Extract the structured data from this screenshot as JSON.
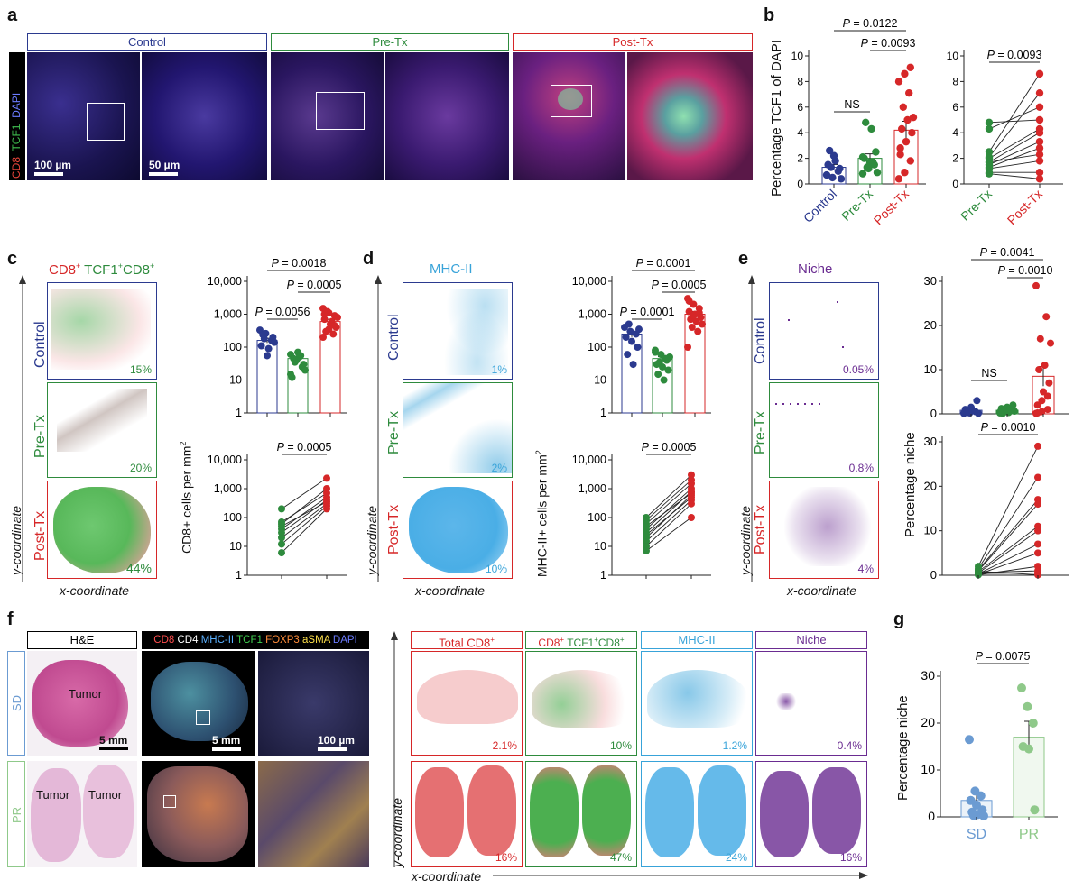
{
  "panel_letters": [
    "a",
    "b",
    "c",
    "d",
    "e",
    "f",
    "g"
  ],
  "colors": {
    "control": "#2b3a8f",
    "pretx": "#2e8b3d",
    "posttx": "#d62728",
    "mhc": "#38a3d9",
    "niche": "#6a2c91",
    "cd8": "#e15759",
    "tcf": "#4caf50",
    "sd": "#6b9bd2",
    "pr": "#8fc98a"
  },
  "a": {
    "headers": [
      "Control",
      "Pre-Tx",
      "Post-Tx"
    ],
    "channel_labels": [
      "CD8",
      "TCF1",
      "DAPI"
    ],
    "scale_bars": [
      "100 µm",
      "50 µm"
    ]
  },
  "b": {
    "ylabel": "Percentage TCF1 of DAPI",
    "left_pvals": [
      "P = 0.0122",
      "P = 0.0093",
      "NS"
    ],
    "right_pval": "P = 0.0093"
  },
  "c": {
    "title_cd8": "CD8",
    "title_sup": "+",
    "title_tcf": " TCF1",
    "title_tcf_sup": "+",
    "title_cd8b": "CD8",
    "title_sup2": "+",
    "rows": [
      "Control",
      "Pre-Tx",
      "Post-Tx"
    ],
    "pcts": [
      "15%",
      "20%",
      "44%"
    ],
    "ylabel_axis": "y-coordinate",
    "xlabel_axis": "x-coordinate",
    "chart_ylabel": "CD8+ cells per mm",
    "top_pvals": [
      "P = 0.0018",
      "P = 0.0005",
      "P = 0.0056"
    ],
    "bottom_pval": "P = 0.0005"
  },
  "d": {
    "title": "MHC-II",
    "rows": [
      "Control",
      "Pre-Tx",
      "Post-Tx"
    ],
    "pcts": [
      "1%",
      "2%",
      "10%"
    ],
    "ylabel_axis": "y-coordinate",
    "xlabel_axis": "x-coordinate",
    "chart_ylabel": "MHC-II+ cells per mm",
    "top_pvals": [
      "P = 0.0001",
      "P = 0.0005",
      "P = 0.0001"
    ],
    "bottom_pval": "P = 0.0005"
  },
  "e": {
    "title": "Niche",
    "rows": [
      "Control",
      "Pre-Tx",
      "Post-Tx"
    ],
    "pcts": [
      "0.05%",
      "0.8%",
      "4%"
    ],
    "ylabel_axis": "y-coordinate",
    "xlabel_axis": "x-coordinate",
    "chart_ylabel": "Percentage niche",
    "top_pvals": [
      "P = 0.0041",
      "P = 0.0010",
      "NS"
    ],
    "bottom_pval": "P = 0.0010"
  },
  "f": {
    "he_label": "H&E",
    "mif_labels": [
      "CD8",
      "CD4",
      "MHC-II",
      "TCF1",
      "FOXP3",
      "aSMA",
      "DAPI"
    ],
    "rows": [
      "SD",
      "PR"
    ],
    "tumor": "Tumor",
    "scale_bars": [
      "5 mm",
      "5 mm",
      "100 µm"
    ],
    "map_headers": [
      "Total CD8",
      "CD8",
      "TCF1",
      "CD8",
      "MHC-II",
      "Niche"
    ],
    "map_sup": "+",
    "sd_pcts": [
      "2.1%",
      "10%",
      "1.2%",
      "0.4%"
    ],
    "pr_pcts": [
      "16%",
      "47%",
      "24%",
      "16%"
    ],
    "ylabel_axis": "y-coordinate",
    "xlabel_axis": "x-coordinate"
  },
  "g": {
    "ylabel": "Percentage niche",
    "pval": "P = 0.0075"
  },
  "chart_data": [
    {
      "id": "b-left",
      "type": "scatter",
      "categories": [
        "Control",
        "Pre-Tx",
        "Post-Tx"
      ],
      "ylim": [
        0,
        10
      ],
      "yticks": [
        0,
        2,
        4,
        6,
        8,
        10
      ],
      "ylabel": "Percentage TCF1 of DAPI",
      "points": [
        [
          0.7,
          0.5,
          1.0,
          1.5,
          2.2,
          1.2,
          2.6,
          1.8,
          0.4,
          1.3
        ],
        [
          0.8,
          1.2,
          1.5,
          2.0,
          1.7,
          2.5,
          4.8,
          4.3,
          0.9,
          1.3,
          1.7,
          2.1
        ],
        [
          0.4,
          0.9,
          1.8,
          2.8,
          3.3,
          4.0,
          4.3,
          5.0,
          5.2,
          6.0,
          7.1,
          8.0,
          8.6,
          9.1,
          2.3
        ]
      ],
      "means": [
        1.3,
        2.0,
        4.2
      ]
    },
    {
      "id": "b-right",
      "type": "paired",
      "categories": [
        "Pre-Tx",
        "Post-Tx"
      ],
      "ylim": [
        0,
        10
      ],
      "yticks": [
        0,
        2,
        4,
        6,
        8,
        10
      ],
      "pairs": [
        [
          4.8,
          5.0
        ],
        [
          4.3,
          6.0
        ],
        [
          2.5,
          8.6
        ],
        [
          2.1,
          7.1
        ],
        [
          2.0,
          4.3
        ],
        [
          1.7,
          4.0
        ],
        [
          1.5,
          3.3
        ],
        [
          1.3,
          2.8
        ],
        [
          1.2,
          1.8
        ],
        [
          0.9,
          0.9
        ],
        [
          0.8,
          0.4
        ],
        [
          1.7,
          2.3
        ]
      ]
    },
    {
      "id": "c-top",
      "type": "scatter",
      "scale": "log",
      "categories": [
        "Control",
        "Pre-Tx",
        "Post-Tx"
      ],
      "yticks": [
        1,
        10,
        100,
        1000,
        10000
      ],
      "yticklabels": [
        "1",
        "10",
        "100",
        "1,000",
        "10,000"
      ],
      "points": [
        [
          330,
          260,
          160,
          110,
          55,
          200,
          240,
          90,
          140,
          180
        ],
        [
          60,
          40,
          25,
          12,
          70,
          30,
          45,
          50,
          20,
          35,
          55,
          15
        ],
        [
          1500,
          1100,
          900,
          700,
          500,
          400,
          300,
          600,
          800,
          1200,
          250,
          200,
          350,
          450,
          1000
        ]
      ],
      "means": [
        160,
        45,
        600
      ]
    },
    {
      "id": "c-bottom",
      "type": "paired",
      "scale": "log",
      "categories": [
        "Pre-Tx",
        "Post-Tx"
      ],
      "yticks": [
        1,
        10,
        100,
        1000,
        10000
      ],
      "yticklabels": [
        "1",
        "10",
        "100",
        "1,000",
        "10,000"
      ],
      "pairs": [
        [
          200,
          2300
        ],
        [
          60,
          1000
        ],
        [
          40,
          500
        ],
        [
          30,
          400
        ],
        [
          20,
          300
        ],
        [
          12,
          250
        ],
        [
          6,
          200
        ],
        [
          50,
          350
        ],
        [
          70,
          700
        ]
      ]
    },
    {
      "id": "d-top",
      "type": "scatter",
      "scale": "log",
      "categories": [
        "Control",
        "Pre-Tx",
        "Post-Tx"
      ],
      "yticks": [
        1,
        10,
        100,
        1000,
        10000
      ],
      "yticklabels": [
        "1",
        "10",
        "100",
        "1,000",
        "10,000"
      ],
      "points": [
        [
          400,
          300,
          250,
          200,
          150,
          100,
          60,
          30,
          350,
          500
        ],
        [
          80,
          60,
          40,
          30,
          25,
          20,
          15,
          10,
          50,
          35,
          45,
          70
        ],
        [
          3000,
          2000,
          1500,
          1200,
          1000,
          800,
          700,
          600,
          500,
          400,
          300,
          100,
          900,
          1100,
          2500
        ]
      ],
      "means": [
        250,
        45,
        1000
      ]
    },
    {
      "id": "d-bottom",
      "type": "paired",
      "scale": "log",
      "categories": [
        "Pre-Tx",
        "Post-Tx"
      ],
      "yticks": [
        1,
        10,
        100,
        1000,
        10000
      ],
      "yticklabels": [
        "1",
        "10",
        "100",
        "1,000",
        "10,000"
      ],
      "pairs": [
        [
          100,
          3000
        ],
        [
          80,
          2000
        ],
        [
          60,
          1500
        ],
        [
          40,
          1000
        ],
        [
          30,
          800
        ],
        [
          20,
          600
        ],
        [
          15,
          400
        ],
        [
          10,
          300
        ],
        [
          7,
          100
        ],
        [
          50,
          700
        ],
        [
          25,
          500
        ]
      ]
    },
    {
      "id": "e-top",
      "type": "scatter",
      "categories": [
        "Control",
        "Pre-Tx",
        "Post-Tx"
      ],
      "ylim": [
        0,
        30
      ],
      "yticks": [
        0,
        10,
        20,
        30
      ],
      "points": [
        [
          0.1,
          0.2,
          0.5,
          1.0,
          1.5,
          3.0,
          0.3,
          0.8,
          0.1,
          0.4
        ],
        [
          0.2,
          0.5,
          0.8,
          1.2,
          1.5,
          2.0,
          0.1,
          0.3,
          0.6,
          0.9,
          1.1,
          0.4
        ],
        [
          0.1,
          0.5,
          1.0,
          2.0,
          5.0,
          7.0,
          10.0,
          11.0,
          16.0,
          17.0,
          22.0,
          29.0,
          3.0,
          4.0,
          0.2
        ]
      ],
      "means": [
        0.8,
        0.8,
        8.5
      ]
    },
    {
      "id": "e-bottom",
      "type": "paired",
      "categories": [
        "Pre-Tx",
        "Post-Tx"
      ],
      "ylim": [
        0,
        30
      ],
      "yticks": [
        0,
        10,
        20,
        30
      ],
      "pairs": [
        [
          2.0,
          29.0
        ],
        [
          1.5,
          22.0
        ],
        [
          1.2,
          17.0
        ],
        [
          1.0,
          16.0
        ],
        [
          0.8,
          11.0
        ],
        [
          0.5,
          10.0
        ],
        [
          0.3,
          7.0
        ],
        [
          0.2,
          5.0
        ],
        [
          0.1,
          2.0
        ],
        [
          0.6,
          1.0
        ],
        [
          0.4,
          0.5
        ],
        [
          0.9,
          0.1
        ]
      ]
    },
    {
      "id": "g",
      "type": "scatter",
      "categories": [
        "SD",
        "PR"
      ],
      "ylim": [
        0,
        30
      ],
      "yticks": [
        0,
        10,
        20,
        30
      ],
      "ylabel": "Percentage niche",
      "points": [
        [
          16.5,
          5.5,
          4.5,
          3.5,
          2.5,
          1.5,
          1.0,
          0.5,
          0.2,
          0.3
        ],
        [
          27.5,
          23.5,
          20.0,
          15.0,
          14.5,
          1.5
        ]
      ],
      "means": [
        3.5,
        17.0
      ]
    }
  ]
}
